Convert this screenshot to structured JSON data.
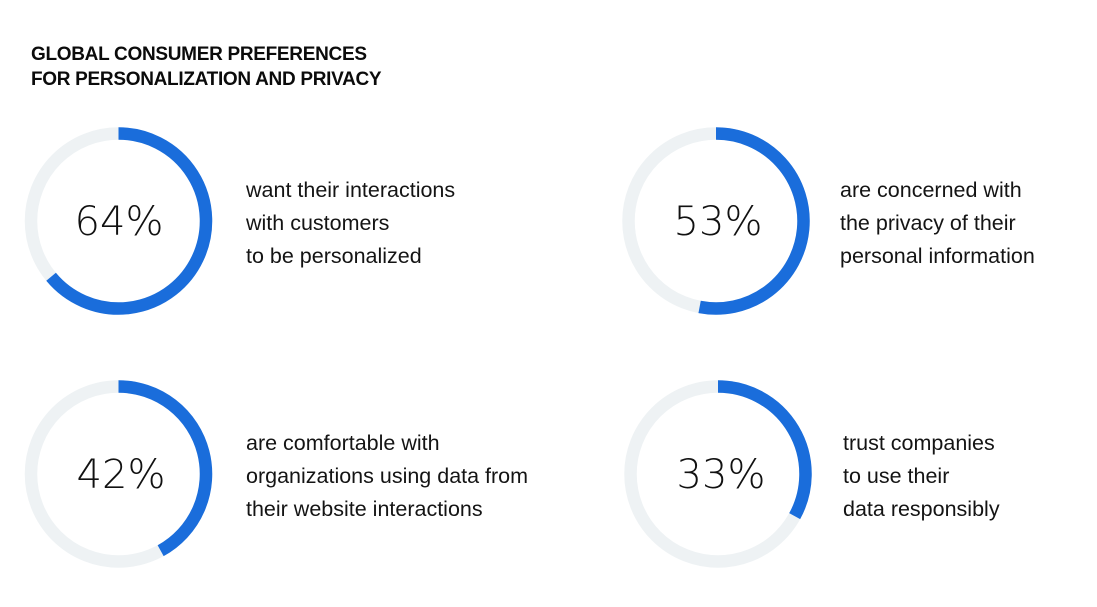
{
  "header": {
    "title_lines": [
      "GLOBAL CONSUMER PREFERENCES",
      "FOR PERSONALIZATION AND PRIVACY"
    ]
  },
  "colors": {
    "accent": "#1a6ddb",
    "track": "#eef2f4",
    "text": "#111111"
  },
  "chart_data": {
    "type": "pie",
    "subtype": "donut-progress",
    "title": "GLOBAL CONSUMER PREFERENCES FOR PERSONALIZATION AND PRIVACY",
    "items": [
      {
        "value": 64,
        "label": "64%",
        "description": [
          "want their interactions",
          "with customers",
          "to be personalized"
        ]
      },
      {
        "value": 53,
        "label": "53%",
        "description": [
          "are concerned with",
          "the privacy of their",
          "personal information"
        ]
      },
      {
        "value": 42,
        "label": "42%",
        "description": [
          "are comfortable with",
          "organizations using data from",
          "their website interactions"
        ]
      },
      {
        "value": 33,
        "label": "33%",
        "description": [
          "trust companies",
          "to use their",
          "data responsibly"
        ]
      }
    ],
    "max": 100
  }
}
